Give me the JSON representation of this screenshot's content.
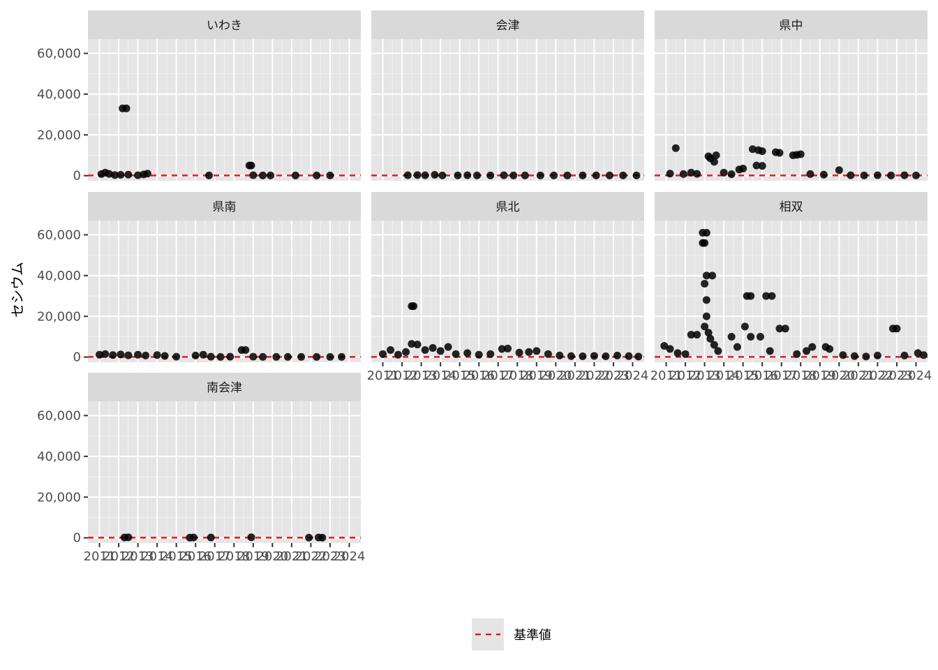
{
  "chart_data": {
    "type": "scatter",
    "ylabel": "セシウム",
    "xlabel": "",
    "ylim": [
      -2500,
      67000
    ],
    "xlim": [
      2010.4,
      2024.6
    ],
    "y_ticks": [
      0,
      20000,
      40000,
      60000
    ],
    "y_tick_labels": [
      "0",
      "20,000",
      "40,000",
      "60,000"
    ],
    "x_ticks": [
      2011,
      2012,
      2013,
      2014,
      2015,
      2016,
      2017,
      2018,
      2019,
      2020,
      2021,
      2022,
      2023,
      2024
    ],
    "x_tick_labels": [
      "2011",
      "2012",
      "2013",
      "2014",
      "2015",
      "2016",
      "2017",
      "2018",
      "2019",
      "2020",
      "2021",
      "2022",
      "2023",
      "2024"
    ],
    "reference_line": {
      "value": 100,
      "color": "#e41a1c",
      "style": "dashed"
    },
    "point_color": "#000000",
    "panel_background": "#e5e5e5",
    "strip_background": "#d9d9d9",
    "legend": {
      "position": "bottom",
      "entries": [
        {
          "label": "基準値",
          "style": "dashed",
          "color": "#e41a1c"
        }
      ]
    },
    "facets": [
      {
        "name": "いわき",
        "points": [
          [
            2011.1,
            800
          ],
          [
            2011.3,
            1500
          ],
          [
            2011.5,
            900
          ],
          [
            2011.8,
            300
          ],
          [
            2012.2,
            33000
          ],
          [
            2012.4,
            33000
          ],
          [
            2012.1,
            400
          ],
          [
            2012.5,
            500
          ],
          [
            2013.0,
            200
          ],
          [
            2013.3,
            600
          ],
          [
            2013.5,
            1000
          ],
          [
            2016.7,
            100
          ],
          [
            2018.8,
            5000
          ],
          [
            2018.9,
            5000
          ],
          [
            2019.0,
            200
          ],
          [
            2019.5,
            100
          ],
          [
            2019.9,
            100
          ],
          [
            2021.2,
            100
          ],
          [
            2022.3,
            100
          ],
          [
            2023.0,
            100
          ]
        ]
      },
      {
        "name": "会津",
        "points": [
          [
            2012.3,
            200
          ],
          [
            2012.8,
            300
          ],
          [
            2013.2,
            200
          ],
          [
            2013.7,
            400
          ],
          [
            2014.1,
            100
          ],
          [
            2014.9,
            100
          ],
          [
            2015.4,
            200
          ],
          [
            2015.9,
            100
          ],
          [
            2016.6,
            100
          ],
          [
            2017.3,
            200
          ],
          [
            2017.8,
            100
          ],
          [
            2018.4,
            100
          ],
          [
            2019.2,
            100
          ],
          [
            2019.9,
            100
          ],
          [
            2020.6,
            100
          ],
          [
            2021.4,
            100
          ],
          [
            2022.1,
            100
          ],
          [
            2022.8,
            100
          ],
          [
            2023.5,
            100
          ],
          [
            2024.2,
            100
          ]
        ]
      },
      {
        "name": "県中",
        "points": [
          [
            2011.5,
            13500
          ],
          [
            2011.2,
            1000
          ],
          [
            2011.9,
            800
          ],
          [
            2012.3,
            1500
          ],
          [
            2012.6,
            900
          ],
          [
            2013.2,
            9500
          ],
          [
            2013.3,
            8500
          ],
          [
            2013.5,
            6800
          ],
          [
            2013.6,
            10000
          ],
          [
            2014.0,
            1500
          ],
          [
            2014.4,
            700
          ],
          [
            2014.8,
            3000
          ],
          [
            2015.0,
            3500
          ],
          [
            2015.5,
            13000
          ],
          [
            2015.8,
            12500
          ],
          [
            2016.0,
            12000
          ],
          [
            2015.7,
            5000
          ],
          [
            2016.0,
            4800
          ],
          [
            2016.7,
            11500
          ],
          [
            2016.9,
            11200
          ],
          [
            2017.6,
            10000
          ],
          [
            2017.8,
            10200
          ],
          [
            2018.0,
            10500
          ],
          [
            2018.5,
            800
          ],
          [
            2019.2,
            500
          ],
          [
            2020.0,
            2700
          ],
          [
            2020.6,
            200
          ],
          [
            2021.3,
            100
          ],
          [
            2022.0,
            200
          ],
          [
            2022.7,
            100
          ],
          [
            2023.4,
            200
          ],
          [
            2024.0,
            100
          ]
        ]
      },
      {
        "name": "県南",
        "points": [
          [
            2011.0,
            1200
          ],
          [
            2011.3,
            1500
          ],
          [
            2011.7,
            1000
          ],
          [
            2012.1,
            1300
          ],
          [
            2012.5,
            900
          ],
          [
            2013.0,
            1200
          ],
          [
            2013.4,
            800
          ],
          [
            2014.0,
            1000
          ],
          [
            2014.4,
            600
          ],
          [
            2015.0,
            200
          ],
          [
            2016.0,
            800
          ],
          [
            2016.4,
            1200
          ],
          [
            2016.8,
            200
          ],
          [
            2017.3,
            100
          ],
          [
            2017.8,
            200
          ],
          [
            2018.4,
            3500
          ],
          [
            2018.6,
            3500
          ],
          [
            2019.0,
            200
          ],
          [
            2019.5,
            100
          ],
          [
            2020.2,
            100
          ],
          [
            2020.8,
            100
          ],
          [
            2021.5,
            100
          ],
          [
            2022.3,
            100
          ],
          [
            2023.0,
            100
          ],
          [
            2023.6,
            100
          ]
        ]
      },
      {
        "name": "県北",
        "points": [
          [
            2011.0,
            1500
          ],
          [
            2011.4,
            3500
          ],
          [
            2011.8,
            1200
          ],
          [
            2012.2,
            2500
          ],
          [
            2012.5,
            25000
          ],
          [
            2012.6,
            25000
          ],
          [
            2012.5,
            6500
          ],
          [
            2012.8,
            6200
          ],
          [
            2013.2,
            3500
          ],
          [
            2013.6,
            4500
          ],
          [
            2014.0,
            3000
          ],
          [
            2014.4,
            5000
          ],
          [
            2014.8,
            1500
          ],
          [
            2015.4,
            2000
          ],
          [
            2016.0,
            1200
          ],
          [
            2016.6,
            1500
          ],
          [
            2017.2,
            4000
          ],
          [
            2017.5,
            4200
          ],
          [
            2018.1,
            2200
          ],
          [
            2018.6,
            2500
          ],
          [
            2019.0,
            3000
          ],
          [
            2019.6,
            1500
          ],
          [
            2020.2,
            800
          ],
          [
            2020.8,
            500
          ],
          [
            2021.4,
            400
          ],
          [
            2022.0,
            600
          ],
          [
            2022.6,
            400
          ],
          [
            2023.2,
            800
          ],
          [
            2023.8,
            500
          ],
          [
            2024.3,
            300
          ]
        ]
      },
      {
        "name": "相双",
        "points": [
          [
            2010.9,
            5500
          ],
          [
            2011.2,
            4000
          ],
          [
            2011.6,
            2000
          ],
          [
            2012.0,
            1500
          ],
          [
            2012.3,
            11000
          ],
          [
            2012.6,
            11000
          ],
          [
            2012.9,
            61000
          ],
          [
            2013.1,
            61000
          ],
          [
            2012.9,
            56000
          ],
          [
            2013.0,
            56000
          ],
          [
            2013.1,
            40000
          ],
          [
            2013.4,
            40000
          ],
          [
            2013.0,
            36000
          ],
          [
            2013.1,
            28000
          ],
          [
            2013.1,
            20000
          ],
          [
            2013.0,
            15000
          ],
          [
            2013.2,
            12000
          ],
          [
            2013.3,
            9000
          ],
          [
            2013.5,
            6000
          ],
          [
            2013.7,
            3000
          ],
          [
            2014.4,
            10000
          ],
          [
            2014.7,
            5000
          ],
          [
            2015.1,
            15000
          ],
          [
            2015.2,
            30000
          ],
          [
            2015.4,
            30000
          ],
          [
            2015.4,
            10000
          ],
          [
            2015.9,
            10000
          ],
          [
            2016.2,
            30000
          ],
          [
            2016.5,
            30000
          ],
          [
            2016.4,
            3000
          ],
          [
            2016.9,
            14000
          ],
          [
            2017.2,
            14000
          ],
          [
            2017.8,
            1500
          ],
          [
            2018.3,
            3000
          ],
          [
            2018.6,
            5000
          ],
          [
            2019.3,
            5000
          ],
          [
            2019.5,
            4000
          ],
          [
            2020.2,
            1000
          ],
          [
            2020.8,
            500
          ],
          [
            2021.4,
            300
          ],
          [
            2022.0,
            800
          ],
          [
            2022.8,
            14000
          ],
          [
            2023.0,
            14000
          ],
          [
            2023.4,
            800
          ],
          [
            2024.1,
            2000
          ],
          [
            2024.4,
            1000
          ]
        ]
      },
      {
        "name": "南会津",
        "points": [
          [
            2012.3,
            200
          ],
          [
            2012.5,
            300
          ],
          [
            2015.7,
            100
          ],
          [
            2015.9,
            200
          ],
          [
            2016.8,
            200
          ],
          [
            2018.9,
            300
          ],
          [
            2021.9,
            100
          ],
          [
            2022.4,
            200
          ],
          [
            2022.6,
            100
          ]
        ]
      }
    ]
  }
}
